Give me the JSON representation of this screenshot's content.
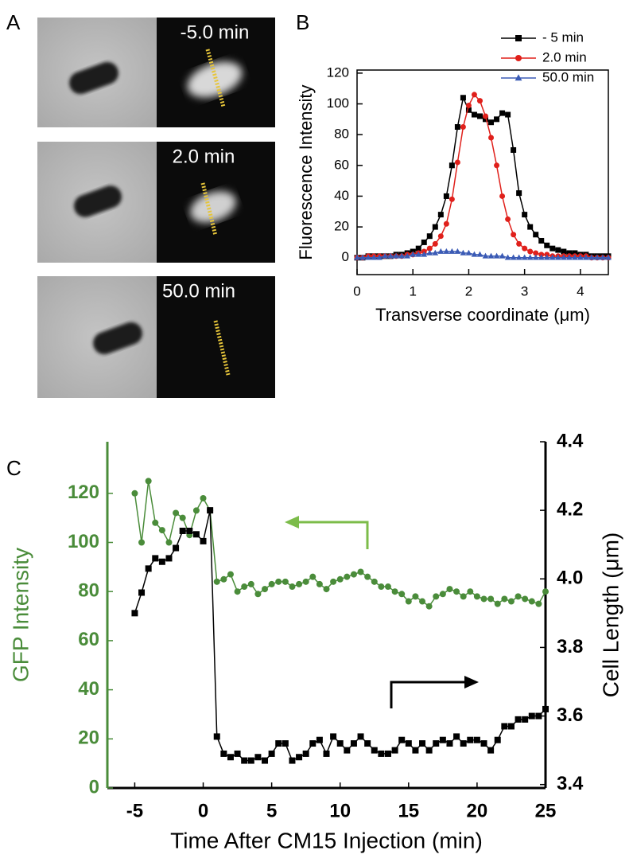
{
  "panel_labels": [
    "A",
    "B",
    "C"
  ],
  "micrograph_labels": [
    "-5.0 min",
    "2.0 min",
    "50.0 min"
  ],
  "chart_data": [
    {
      "type": "line",
      "xlabel": "Transverse coordinate (μm)",
      "ylabel": "Fluorescence Intensity",
      "x": [
        0,
        0.1,
        0.2,
        0.3,
        0.4,
        0.5,
        0.6,
        0.7,
        0.8,
        0.9,
        1,
        1.1,
        1.2,
        1.3,
        1.4,
        1.5,
        1.6,
        1.7,
        1.8,
        1.9,
        2,
        2.1,
        2.2,
        2.3,
        2.4,
        2.5,
        2.6,
        2.7,
        2.8,
        2.9,
        3,
        3.1,
        3.2,
        3.3,
        3.4,
        3.5,
        3.6,
        3.7,
        3.8,
        3.9,
        4,
        4.1,
        4.2,
        4.3,
        4.4,
        4.5
      ],
      "xlim": [
        0,
        4.5
      ],
      "xticks": [
        0,
        1,
        2,
        3,
        4
      ],
      "ylim": [
        -11,
        122
      ],
      "yticks": [
        0,
        20,
        40,
        60,
        80,
        100,
        120
      ],
      "legend": "upper right",
      "series": [
        {
          "name": "- 5 min",
          "color": "#000000",
          "marker": "square",
          "values": [
            0,
            0,
            1,
            1,
            1,
            1,
            1,
            2,
            2,
            3,
            4,
            6,
            10,
            14,
            20,
            28,
            40,
            60,
            85,
            104,
            96,
            93,
            92,
            90,
            88,
            90,
            94,
            93,
            70,
            42,
            28,
            20,
            15,
            11,
            8,
            6,
            5,
            4,
            3,
            3,
            2,
            2,
            1,
            1,
            1,
            1
          ]
        },
        {
          "name": "2.0 min",
          "color": "#e0201b",
          "marker": "circle",
          "values": [
            0,
            0,
            1,
            1,
            1,
            1,
            1,
            1,
            1,
            2,
            2,
            3,
            4,
            6,
            9,
            14,
            22,
            38,
            62,
            85,
            99,
            106,
            102,
            92,
            78,
            60,
            40,
            25,
            15,
            9,
            6,
            4,
            3,
            2,
            2,
            1,
            1,
            1,
            1,
            1,
            1,
            1,
            0,
            0,
            0,
            0
          ]
        },
        {
          "name": "50.0 min",
          "color": "#3b5bb5",
          "marker": "triangle",
          "values": [
            0,
            0,
            0,
            0,
            0,
            1,
            1,
            1,
            1,
            1,
            2,
            2,
            2,
            3,
            3,
            4,
            4,
            4,
            4,
            3,
            3,
            2,
            2,
            1,
            1,
            1,
            1,
            0,
            0,
            0,
            0,
            0,
            0,
            0,
            0,
            0,
            0,
            0,
            0,
            0,
            0,
            0,
            0,
            0,
            0,
            0
          ]
        }
      ]
    },
    {
      "type": "line",
      "xlabel": "Time After CM15 Injection (min)",
      "ylabel": "GFP Intensity",
      "y2label": "Cell Length (μm)",
      "y_color": "#4a8c3a",
      "x": [
        -5,
        -4.5,
        -4,
        -3.5,
        -3,
        -2.5,
        -2,
        -1.5,
        -1,
        -0.5,
        0,
        0.5,
        1,
        1.5,
        2,
        2.5,
        3,
        3.5,
        4,
        4.5,
        5,
        5.5,
        6,
        6.5,
        7,
        7.5,
        8,
        8.5,
        9,
        9.5,
        10,
        10.5,
        11,
        11.5,
        12,
        12.5,
        13,
        13.5,
        14,
        14.5,
        15,
        15.5,
        16,
        16.5,
        17,
        17.5,
        18,
        18.5,
        19,
        19.5,
        20,
        20.5,
        21,
        21.5,
        22,
        22.5,
        23,
        23.5,
        24,
        24.5,
        25
      ],
      "xlim": [
        -7,
        25
      ],
      "xticks": [
        -5,
        0,
        5,
        10,
        15,
        20,
        25
      ],
      "ylim": [
        0,
        141
      ],
      "yticks": [
        0,
        20,
        40,
        60,
        80,
        100,
        120
      ],
      "y2lim": [
        3.39,
        4.4
      ],
      "y2ticks": [
        3.4,
        3.6,
        3.8,
        {
          "value": 4,
          "label": "4.0"
        },
        4.2,
        4.4
      ],
      "series": [
        {
          "color": "#4a8c3a",
          "marker": "circle",
          "values": [
            120,
            100,
            125,
            108,
            105,
            100,
            112,
            110,
            103,
            113,
            118,
            113,
            84,
            85,
            87,
            80,
            82,
            83,
            79,
            81,
            83,
            84,
            84,
            82,
            83,
            84,
            86,
            83,
            81,
            84,
            85,
            86,
            87,
            88,
            86,
            84,
            82,
            82,
            80,
            79,
            76,
            78,
            76,
            74,
            78,
            79,
            81,
            80,
            78,
            80,
            78,
            77,
            77,
            75,
            77,
            76,
            78,
            77,
            76,
            75,
            80
          ]
        },
        {
          "color": "#000000",
          "marker": "square",
          "axis": "y2",
          "values": [
            3.9,
            3.96,
            4.03,
            4.06,
            4.05,
            4.06,
            4.09,
            4.14,
            4.14,
            4.13,
            4.11,
            4.2,
            3.54,
            3.49,
            3.48,
            3.49,
            3.47,
            3.47,
            3.48,
            3.47,
            3.49,
            3.52,
            3.52,
            3.47,
            3.48,
            3.49,
            3.52,
            3.53,
            3.49,
            3.54,
            3.52,
            3.5,
            3.52,
            3.54,
            3.52,
            3.5,
            3.49,
            3.49,
            3.5,
            3.53,
            3.52,
            3.5,
            3.52,
            3.5,
            3.52,
            3.53,
            3.52,
            3.54,
            3.52,
            3.53,
            3.53,
            3.52,
            3.5,
            3.53,
            3.57,
            3.57,
            3.59,
            3.59,
            3.6,
            3.6,
            3.62
          ]
        }
      ]
    }
  ]
}
